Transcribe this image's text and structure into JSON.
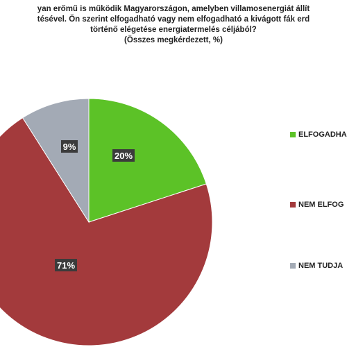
{
  "title_lines": [
    "yan erőmű is működik Magyarországon, amelyben villamosenergiát állít",
    "tésével.  Ön szerint elfogadható vagy nem elfogadható a kivágott fák erd",
    "történő elégetése energiatermelés céljából?",
    "(Összes megkérdezett, %)"
  ],
  "legend": [
    {
      "label": "ELFOGADHA",
      "color": "#5cc227"
    },
    {
      "label": "NEM ELFOG",
      "color": "#a33a3c"
    },
    {
      "label": "NEM TUDJA",
      "color": "#a3aab5"
    }
  ],
  "chart_data": {
    "type": "pie",
    "slices": [
      {
        "value": 20,
        "label": "20%",
        "color": "#5cc227"
      },
      {
        "value": 71,
        "label": "71%",
        "color": "#a33a3c"
      },
      {
        "value": 9,
        "label": "9%",
        "color": "#a3aab5"
      }
    ],
    "start": "12 o'clock",
    "direction": "clockwise"
  }
}
